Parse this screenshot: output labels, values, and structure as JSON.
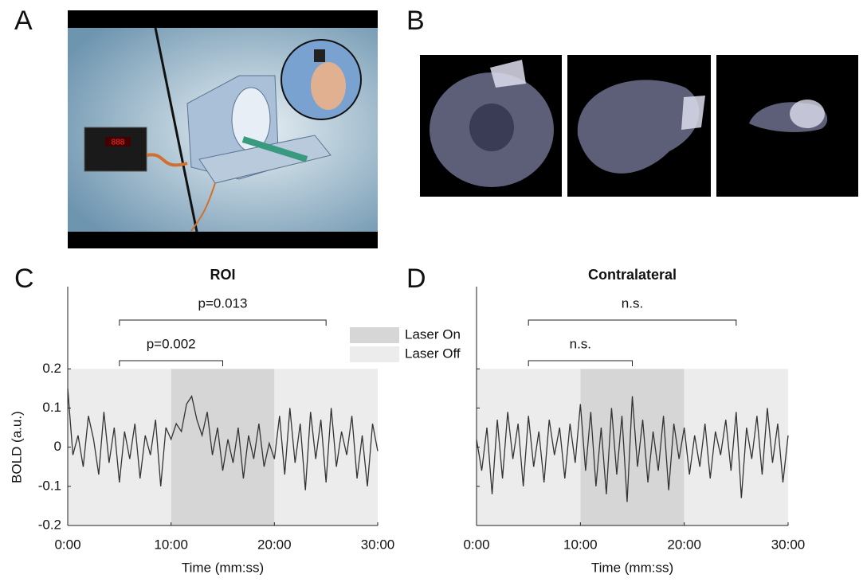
{
  "panels": [
    "A",
    "B",
    "C",
    "D"
  ],
  "chart_data": [
    {
      "type": "line",
      "title": "ROI",
      "xlabel": "Time (mm:ss)",
      "ylabel": "BOLD (a.u.)",
      "x": [
        0,
        30,
        60,
        90,
        120,
        150,
        180,
        210,
        240,
        270,
        300,
        330,
        360,
        390,
        420,
        450,
        480,
        510,
        540,
        570,
        600,
        630,
        660,
        690,
        720,
        750,
        780,
        810,
        840,
        870,
        900,
        930,
        960,
        990,
        1020,
        1050,
        1080,
        1110,
        1140,
        1170,
        1200,
        1230,
        1260,
        1290,
        1320,
        1350,
        1380,
        1410,
        1440,
        1470,
        1500,
        1530,
        1560,
        1590,
        1620,
        1650,
        1680,
        1710,
        1740,
        1770,
        1800
      ],
      "series": [
        {
          "color": "#333333",
          "values": [
            0.15,
            -0.02,
            0.03,
            -0.05,
            0.08,
            0.02,
            -0.07,
            0.09,
            -0.04,
            0.05,
            -0.09,
            0.04,
            -0.03,
            0.06,
            -0.08,
            0.03,
            -0.02,
            0.07,
            -0.1,
            0.05,
            0.02,
            0.06,
            0.04,
            0.11,
            0.13,
            0.07,
            0.03,
            0.09,
            -0.02,
            0.05,
            -0.06,
            0.02,
            -0.04,
            0.05,
            -0.08,
            0.03,
            -0.03,
            0.06,
            -0.05,
            0.01,
            -0.03,
            0.08,
            -0.07,
            0.1,
            -0.04,
            0.06,
            -0.11,
            0.09,
            -0.03,
            0.07,
            -0.09,
            0.1,
            -0.05,
            0.04,
            -0.02,
            0.08,
            -0.08,
            0.03,
            -0.1,
            0.06,
            -0.01
          ]
        }
      ],
      "regions": [
        {
          "name": "Laser On",
          "color": "#d6d6d6",
          "spans": [
            [
              600,
              1200
            ]
          ]
        },
        {
          "name": "Laser Off",
          "color": "#ececec",
          "spans": [
            [
              0,
              600
            ],
            [
              1200,
              1800
            ]
          ]
        }
      ],
      "region_ylim": [
        -0.2,
        0.2
      ],
      "annotations": [
        {
          "text": "p=0.002",
          "x": [
            300,
            900
          ]
        },
        {
          "text": "p=0.013",
          "x": [
            300,
            1500
          ]
        }
      ],
      "xlim": [
        0,
        1800
      ],
      "ylim": [
        -0.2,
        0.41
      ],
      "xticks": [
        {
          "value": 0,
          "label": "0:00"
        },
        {
          "value": 600,
          "label": "10:00"
        },
        {
          "value": 1200,
          "label": "20:00"
        },
        {
          "value": 1800,
          "label": "30:00"
        }
      ],
      "yticks": [
        -0.2,
        -0.1,
        0,
        0.1,
        0.2
      ],
      "show_ytick_labels": true,
      "legend": true
    },
    {
      "type": "line",
      "title": "Contralateral",
      "xlabel": "Time (mm:ss)",
      "x": [
        0,
        30,
        60,
        90,
        120,
        150,
        180,
        210,
        240,
        270,
        300,
        330,
        360,
        390,
        420,
        450,
        480,
        510,
        540,
        570,
        600,
        630,
        660,
        690,
        720,
        750,
        780,
        810,
        840,
        870,
        900,
        930,
        960,
        990,
        1020,
        1050,
        1080,
        1110,
        1140,
        1170,
        1200,
        1230,
        1260,
        1290,
        1320,
        1350,
        1380,
        1410,
        1440,
        1470,
        1500,
        1530,
        1560,
        1590,
        1620,
        1650,
        1680,
        1710,
        1740,
        1770,
        1800
      ],
      "series": [
        {
          "color": "#333333",
          "values": [
            0.02,
            -0.06,
            0.05,
            -0.12,
            0.07,
            -0.08,
            0.09,
            -0.03,
            0.06,
            -0.1,
            0.08,
            -0.05,
            0.04,
            -0.09,
            0.07,
            -0.02,
            0.05,
            -0.08,
            0.06,
            -0.04,
            0.11,
            -0.06,
            0.09,
            -0.1,
            0.05,
            -0.12,
            0.1,
            -0.07,
            0.08,
            -0.14,
            0.13,
            -0.05,
            0.07,
            -0.09,
            0.04,
            -0.06,
            0.08,
            -0.11,
            0.06,
            -0.03,
            0.05,
            -0.07,
            0.03,
            -0.05,
            0.06,
            -0.08,
            0.04,
            -0.02,
            0.07,
            -0.06,
            0.09,
            -0.13,
            0.05,
            -0.03,
            0.08,
            -0.07,
            0.1,
            -0.04,
            0.06,
            -0.09,
            0.03
          ]
        }
      ],
      "regions": [
        {
          "name": "Laser On",
          "color": "#d6d6d6",
          "spans": [
            [
              600,
              1200
            ]
          ]
        },
        {
          "name": "Laser Off",
          "color": "#ececec",
          "spans": [
            [
              0,
              600
            ],
            [
              1200,
              1800
            ]
          ]
        }
      ],
      "region_ylim": [
        -0.2,
        0.2
      ],
      "annotations": [
        {
          "text": "n.s.",
          "x": [
            300,
            900
          ]
        },
        {
          "text": "n.s.",
          "x": [
            300,
            1500
          ]
        }
      ],
      "xlim": [
        0,
        1800
      ],
      "ylim": [
        -0.2,
        0.41
      ],
      "xticks": [
        {
          "value": 0,
          "label": "0:00"
        },
        {
          "value": 600,
          "label": "10:00"
        },
        {
          "value": 1200,
          "label": "20:00"
        },
        {
          "value": 1800,
          "label": "30:00"
        }
      ],
      "yticks": [
        -0.2,
        -0.1,
        0,
        0.1,
        0.2
      ],
      "show_ytick_labels": false,
      "legend": false
    }
  ]
}
